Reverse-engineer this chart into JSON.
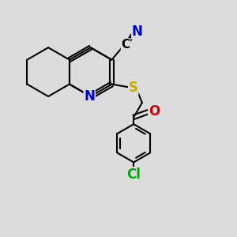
{
  "background_color": "#dcdcdc",
  "bond_color": "#000000",
  "atom_colors": {
    "N": "#0000cc",
    "S": "#ccaa00",
    "O": "#cc0000",
    "Cl": "#00aa00",
    "C": "#000000"
  },
  "lw": 1.5,
  "font_size": 12,
  "figsize": [
    3.0,
    3.0
  ],
  "dpi": 100
}
